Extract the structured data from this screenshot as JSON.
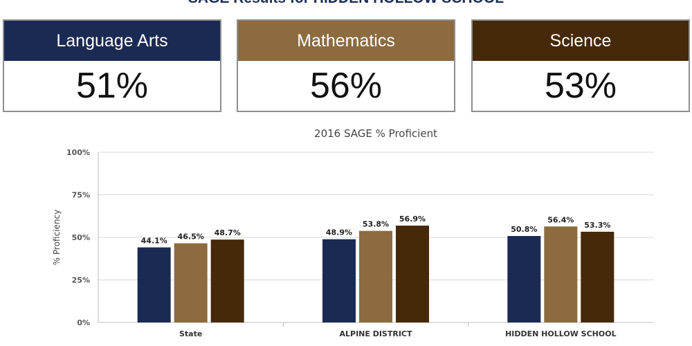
{
  "page": {
    "title": "SAGE Results for HIDDEN HOLLOW SCHOOL"
  },
  "summary_cards": [
    {
      "subject": "Language Arts",
      "value": "51%",
      "color": "#1b2a52"
    },
    {
      "subject": "Mathematics",
      "value": "56%",
      "color": "#8c6b3f"
    },
    {
      "subject": "Science",
      "value": "53%",
      "color": "#45290a"
    }
  ],
  "chart_data": {
    "type": "bar",
    "title": "2016 SAGE % Proficient",
    "xlabel": "",
    "ylabel": "% Proficiency",
    "ylim": [
      0,
      100
    ],
    "yticks": [
      "0%",
      "25%",
      "50%",
      "75%",
      "100%"
    ],
    "yticks_values": [
      0,
      25,
      50,
      75,
      100
    ],
    "grid": true,
    "categories": [
      "State",
      "ALPINE DISTRICT",
      "HIDDEN HOLLOW SCHOOL"
    ],
    "series": [
      {
        "values": [
          44.1,
          48.9,
          50.8
        ],
        "labels": [
          "44.1%",
          "48.9%",
          "50.8%"
        ],
        "color": "#1b2a52"
      },
      {
        "values": [
          46.5,
          53.8,
          56.4
        ],
        "labels": [
          "46.5%",
          "53.8%",
          "56.4%"
        ],
        "color": "#8c6b3f"
      },
      {
        "values": [
          48.7,
          56.9,
          53.3
        ],
        "labels": [
          "48.7%",
          "56.9%",
          "53.3%"
        ],
        "color": "#45290a"
      }
    ]
  }
}
